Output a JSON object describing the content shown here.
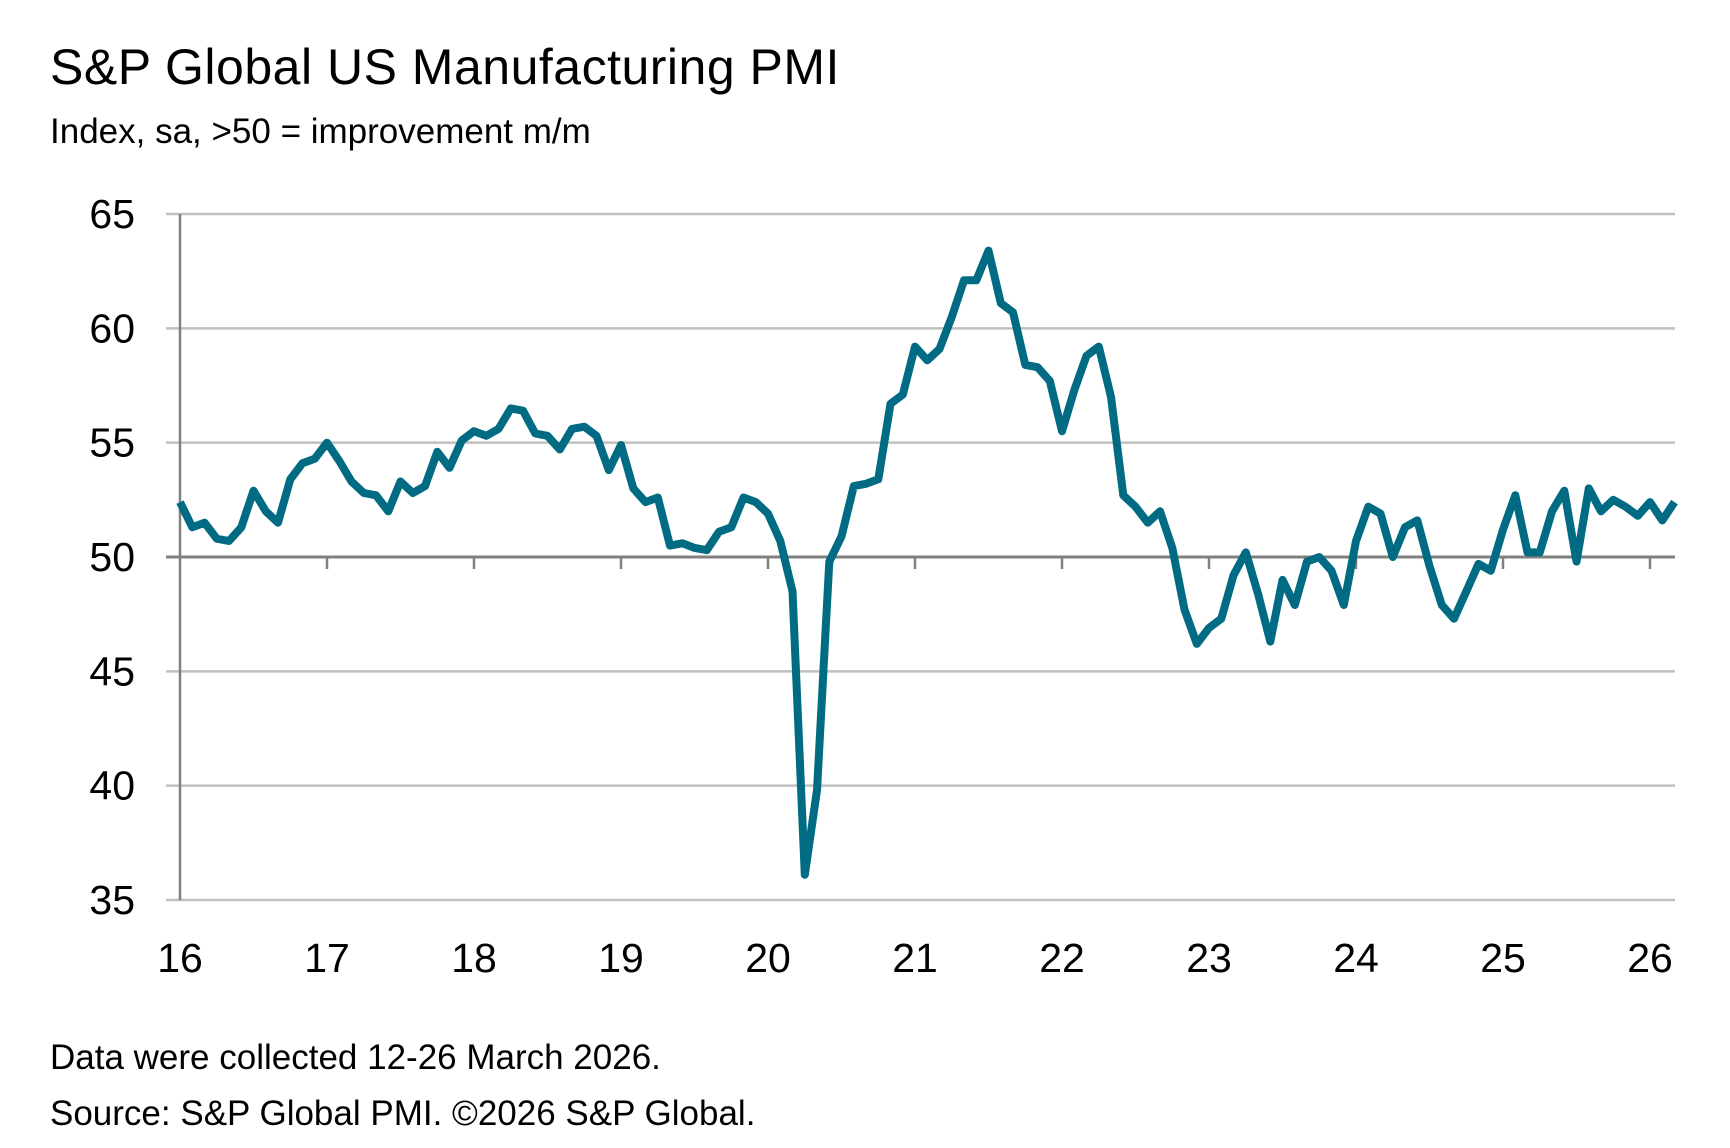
{
  "chart_data": {
    "type": "line",
    "title": "S&P Global US Manufacturing PMI",
    "subtitle": "Index, sa, >50 = improvement m/m",
    "xlabel": "",
    "ylabel": "",
    "ylim": [
      35,
      65
    ],
    "yticks": [
      "35",
      "40",
      "45",
      "50",
      "55",
      "60",
      "65"
    ],
    "xticks": [
      "16",
      "17",
      "18",
      "19",
      "20",
      "21",
      "22",
      "23",
      "24",
      "25",
      "26"
    ],
    "grid": true,
    "reference_line": 50,
    "x_start": "2016-01",
    "frequency": "monthly",
    "series": [
      {
        "name": "US Manufacturing PMI",
        "color": "#006b82",
        "values": [
          52.4,
          51.3,
          51.5,
          50.8,
          50.7,
          51.3,
          52.9,
          52.0,
          51.5,
          53.4,
          54.1,
          54.3,
          55.0,
          54.2,
          53.3,
          52.8,
          52.7,
          52.0,
          53.3,
          52.8,
          53.1,
          54.6,
          53.9,
          55.1,
          55.5,
          55.3,
          55.6,
          56.5,
          56.4,
          55.4,
          55.3,
          54.7,
          55.6,
          55.7,
          55.3,
          53.8,
          54.9,
          53.0,
          52.4,
          52.6,
          50.5,
          50.6,
          50.4,
          50.3,
          51.1,
          51.3,
          52.6,
          52.4,
          51.9,
          50.7,
          48.5,
          36.1,
          39.8,
          49.8,
          50.9,
          53.1,
          53.2,
          53.4,
          56.7,
          57.1,
          59.2,
          58.6,
          59.1,
          60.5,
          62.1,
          62.1,
          63.4,
          61.1,
          60.7,
          58.4,
          58.3,
          57.7,
          55.5,
          57.3,
          58.8,
          59.2,
          57.0,
          52.7,
          52.2,
          51.5,
          52.0,
          50.4,
          47.7,
          46.2,
          46.9,
          47.3,
          49.2,
          50.2,
          48.4,
          46.3,
          49.0,
          47.9,
          49.8,
          50.0,
          49.4,
          47.9,
          50.7,
          52.2,
          51.9,
          50.0,
          51.3,
          51.6,
          49.6,
          47.9,
          47.3,
          48.5,
          49.7,
          49.4,
          51.2,
          52.7,
          50.2,
          50.2,
          52.0,
          52.9,
          49.8,
          53.0,
          52.0,
          52.5,
          52.2,
          51.8,
          52.4,
          51.6,
          52.4
        ]
      }
    ]
  },
  "footer": {
    "note": "Data were collected 12-26 March 2026.",
    "source": "Source: S&P Global PMI. ©2026 S&P Global."
  },
  "colors": {
    "line": "#006b82",
    "grid": "#c0c0c0",
    "axis": "#808080"
  }
}
